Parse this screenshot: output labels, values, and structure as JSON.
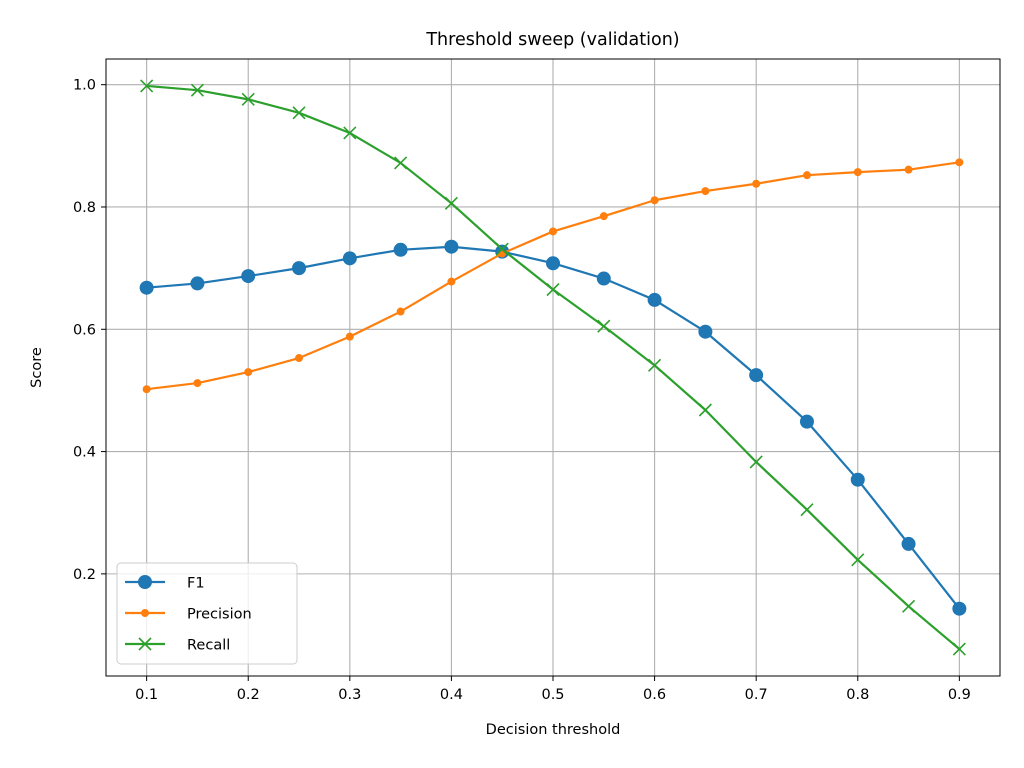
{
  "chart_data": {
    "type": "line",
    "title": "Threshold sweep (validation)",
    "xlabel": "Decision threshold",
    "ylabel": "Score",
    "xlim": [
      0.06,
      0.94
    ],
    "ylim": [
      0.033,
      1.042
    ],
    "xticks": [
      0.1,
      0.2,
      0.3,
      0.4,
      0.5,
      0.6,
      0.7,
      0.8,
      0.9
    ],
    "xtick_labels": [
      "0.1",
      "0.2",
      "0.3",
      "0.4",
      "0.5",
      "0.6",
      "0.7",
      "0.8",
      "0.9"
    ],
    "yticks": [
      0.2,
      0.4,
      0.6,
      0.8,
      1.0
    ],
    "ytick_labels": [
      "0.2",
      "0.4",
      "0.6",
      "0.8",
      "1.0"
    ],
    "grid": true,
    "legend_position": "lower-left",
    "x": [
      0.1,
      0.15,
      0.2,
      0.25,
      0.3,
      0.35,
      0.4,
      0.45,
      0.5,
      0.55,
      0.6,
      0.65,
      0.7,
      0.75,
      0.8,
      0.85,
      0.9
    ],
    "series": [
      {
        "name": "F1",
        "color": "#1f77b4",
        "marker": "circle",
        "values": [
          0.668,
          0.675,
          0.687,
          0.7,
          0.716,
          0.73,
          0.735,
          0.727,
          0.708,
          0.683,
          0.648,
          0.596,
          0.525,
          0.449,
          0.354,
          0.249,
          0.143
        ]
      },
      {
        "name": "Precision",
        "color": "#ff7f0e",
        "marker": "small-circle",
        "values": [
          0.502,
          0.512,
          0.53,
          0.553,
          0.588,
          0.629,
          0.678,
          0.724,
          0.76,
          0.785,
          0.811,
          0.826,
          0.838,
          0.852,
          0.857,
          0.861,
          0.873
        ]
      },
      {
        "name": "Recall",
        "color": "#2ca02c",
        "marker": "x",
        "values": [
          0.998,
          0.991,
          0.976,
          0.954,
          0.921,
          0.872,
          0.806,
          0.731,
          0.665,
          0.605,
          0.541,
          0.468,
          0.383,
          0.305,
          0.223,
          0.147,
          0.077
        ]
      }
    ]
  }
}
